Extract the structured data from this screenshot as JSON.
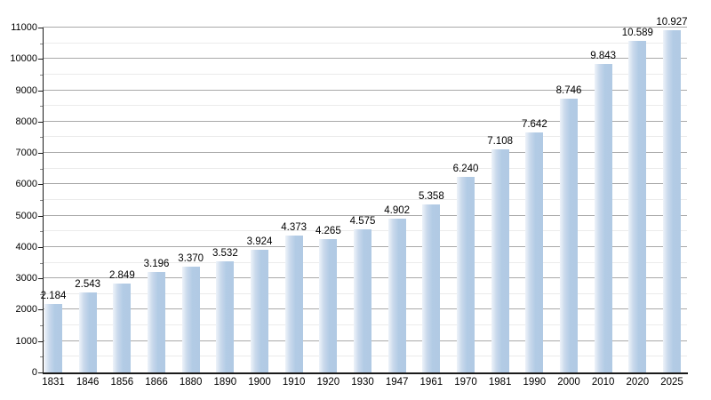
{
  "chart_data": {
    "type": "bar",
    "title": "",
    "xlabel": "",
    "ylabel": "",
    "categories": [
      "1831",
      "1846",
      "1856",
      "1866",
      "1880",
      "1890",
      "1900",
      "1910",
      "1920",
      "1930",
      "1947",
      "1961",
      "1970",
      "1981",
      "1990",
      "2000",
      "2010",
      "2020",
      "2025"
    ],
    "values": [
      2184,
      2543,
      2849,
      3196,
      3370,
      3532,
      3924,
      4373,
      4265,
      4575,
      4902,
      5358,
      6240,
      7108,
      7642,
      8746,
      9843,
      10589,
      10927
    ],
    "bar_labels": [
      "2.184",
      "2.543",
      "2.849",
      "3.196",
      "3.370",
      "3.532",
      "3.924",
      "4.373",
      "4.265",
      "4.575",
      "4.902",
      "5.358",
      "6.240",
      "7.108",
      "7.642",
      "8.746",
      "9.843",
      "10.589",
      "10.927"
    ],
    "ylim": [
      0,
      11000
    ],
    "y_tick_step": 1000,
    "y_minor_step": 500,
    "y_tick_labels": [
      "0",
      "1000",
      "2000",
      "3000",
      "4000",
      "5000",
      "6000",
      "7000",
      "8000",
      "9000",
      "10000",
      "11000"
    ],
    "grid": "horizontal, major every 1000 with faint minor every 500",
    "legend": "none"
  },
  "colors": {
    "bar_fill": "#b1cae4",
    "bar_fill_light": "#eef3f9",
    "grid_major": "#a9a9a9",
    "grid_minor": "#ebebeb",
    "axis": "#1a1a1a",
    "text": "#000000",
    "background": "#ffffff"
  }
}
